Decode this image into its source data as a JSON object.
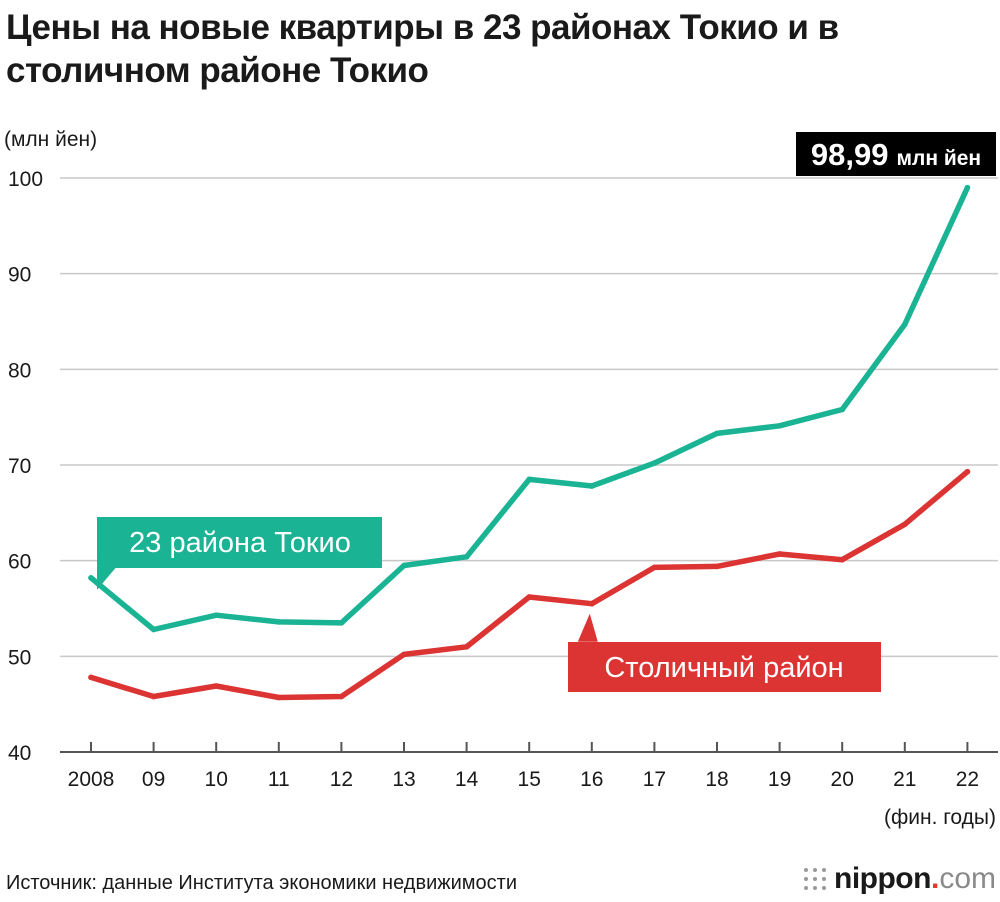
{
  "title": "Цены на новые квартиры в 23 районах Токио и в столичном районе Токио",
  "source": "Источник: данные Института экономики недвижимости",
  "brand": {
    "name": "nippon",
    "separator": ".",
    "tld": "com"
  },
  "colors": {
    "tokyo23": "#1ab394",
    "metro": "#dc3333",
    "grid": "#c8c8c8",
    "axis": "#555555",
    "peak_badge": "#000000"
  },
  "chart_data": {
    "type": "line",
    "title": "Цены на новые квартиры в 23 районах Токио и в столичном районе Токио",
    "ylabel": "(млн йен)",
    "xlabel": "(фин. годы)",
    "ylim": [
      40,
      100
    ],
    "yticks": [
      40,
      50,
      60,
      70,
      80,
      90,
      100
    ],
    "categories": [
      "2008",
      "09",
      "10",
      "11",
      "12",
      "13",
      "14",
      "15",
      "16",
      "17",
      "18",
      "19",
      "20",
      "21",
      "22"
    ],
    "series": [
      {
        "name": "23 района Токио",
        "color": "#1ab394",
        "values": [
          58.2,
          52.8,
          54.3,
          53.6,
          53.5,
          59.5,
          60.4,
          68.5,
          67.8,
          70.2,
          73.3,
          74.1,
          75.8,
          84.7,
          98.99
        ]
      },
      {
        "name": "Столичный район",
        "color": "#dc3333",
        "values": [
          47.8,
          45.8,
          46.9,
          45.7,
          45.8,
          50.2,
          51.0,
          56.2,
          55.5,
          59.3,
          59.4,
          60.7,
          60.1,
          63.8,
          69.3
        ]
      }
    ],
    "annotation": {
      "value": "98,99",
      "unit": "млн йен"
    }
  }
}
